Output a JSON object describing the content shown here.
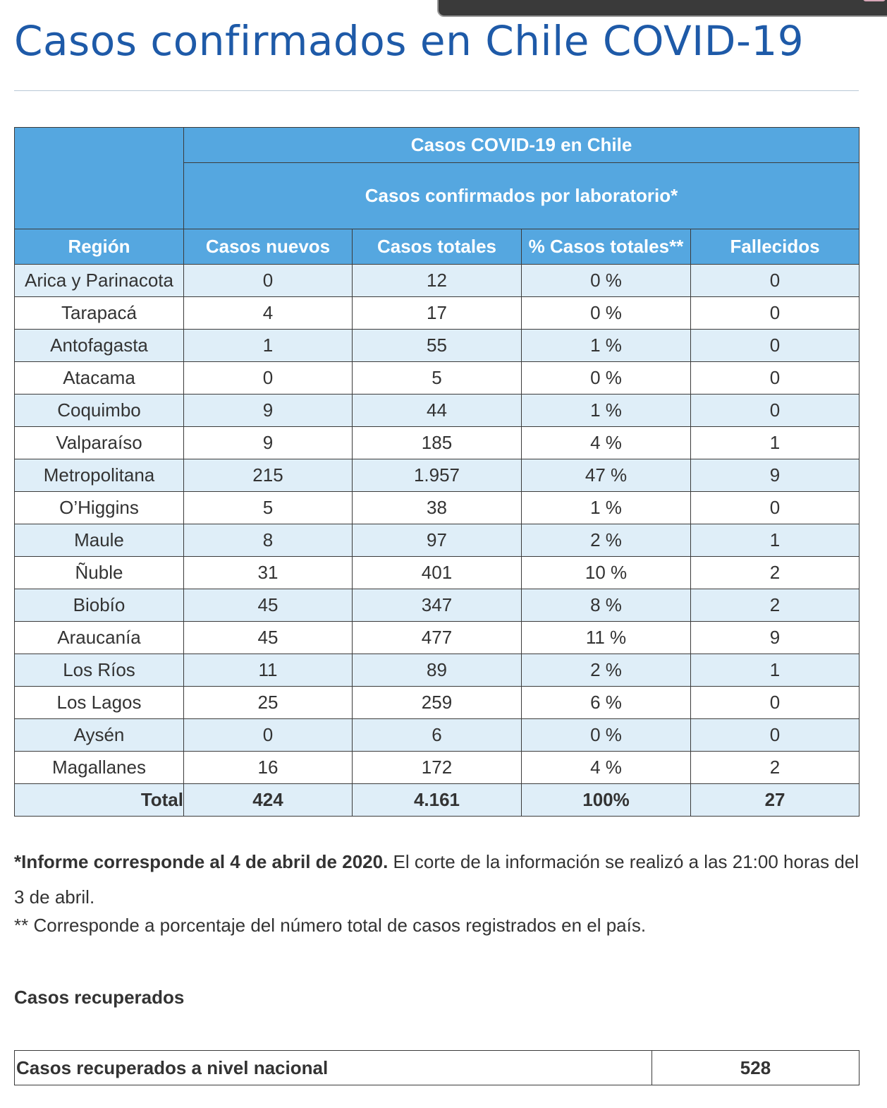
{
  "page": {
    "title": "Casos confirmados en Chile COVID-19"
  },
  "table": {
    "header_top": "Casos COVID-19 en Chile",
    "header_sub": "Casos confirmados por laboratorio*",
    "columns": [
      "Región",
      "Casos nuevos",
      "Casos totales",
      "% Casos totales**",
      "Fallecidos"
    ],
    "rows": [
      [
        "Arica y Parinacota",
        "0",
        "12",
        "0 %",
        "0"
      ],
      [
        "Tarapacá",
        "4",
        "17",
        "0 %",
        "0"
      ],
      [
        "Antofagasta",
        "1",
        "55",
        "1 %",
        "0"
      ],
      [
        "Atacama",
        "0",
        "5",
        "0 %",
        "0"
      ],
      [
        "Coquimbo",
        "9",
        "44",
        "1 %",
        "0"
      ],
      [
        "Valparaíso",
        "9",
        "185",
        "4 %",
        "1"
      ],
      [
        "Metropolitana",
        "215",
        "1.957",
        "47 %",
        "9"
      ],
      [
        "O’Higgins",
        "5",
        "38",
        "1 %",
        "0"
      ],
      [
        "Maule",
        "8",
        "97",
        "2 %",
        "1"
      ],
      [
        "Ñuble",
        "31",
        "401",
        "10 %",
        "2"
      ],
      [
        "Biobío",
        "45",
        "347",
        "8 %",
        "2"
      ],
      [
        "Araucanía",
        "45",
        "477",
        "11 %",
        "9"
      ],
      [
        "Los Ríos",
        "11",
        "89",
        "2 %",
        "1"
      ],
      [
        "Los Lagos",
        "25",
        "259",
        "6 %",
        "0"
      ],
      [
        "Aysén",
        "0",
        "6",
        "0 %",
        "0"
      ],
      [
        "Magallanes",
        "16",
        "172",
        "4 %",
        "2"
      ]
    ],
    "total": [
      "Total",
      "424",
      "4.161",
      "100%",
      "27"
    ]
  },
  "notes": {
    "note1_bold": "*Informe corresponde al 4 de abril de 2020.",
    "note1_rest": " El corte de la información se realizó a las 21:00 horas del 3 de abril.",
    "note2": "** Corresponde a porcentaje del número total de casos registrados en el país."
  },
  "recovered": {
    "heading": "Casos recuperados",
    "label": "Casos recuperados a nivel nacional",
    "value": "528"
  }
}
